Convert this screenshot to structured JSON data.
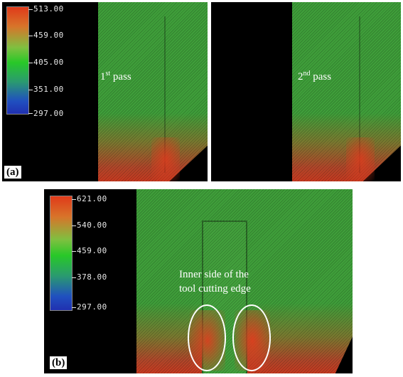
{
  "panel_a": {
    "letter": "(a)",
    "scale_ticks": [
      "513.00",
      "459.00",
      "405.00",
      "351.00",
      "297.00"
    ],
    "pass_1": {
      "ordinal": "1",
      "suffix": "st",
      "word": " pass"
    },
    "pass_2": {
      "ordinal": "2",
      "suffix": "nd",
      "word": " pass"
    }
  },
  "panel_b": {
    "letter": "(b)",
    "scale_ticks": [
      "621.00",
      "540.00",
      "459.00",
      "378.00",
      "297.00"
    ],
    "annotation_line1": "Inner side of the",
    "annotation_line2": "tool cutting edge"
  }
}
